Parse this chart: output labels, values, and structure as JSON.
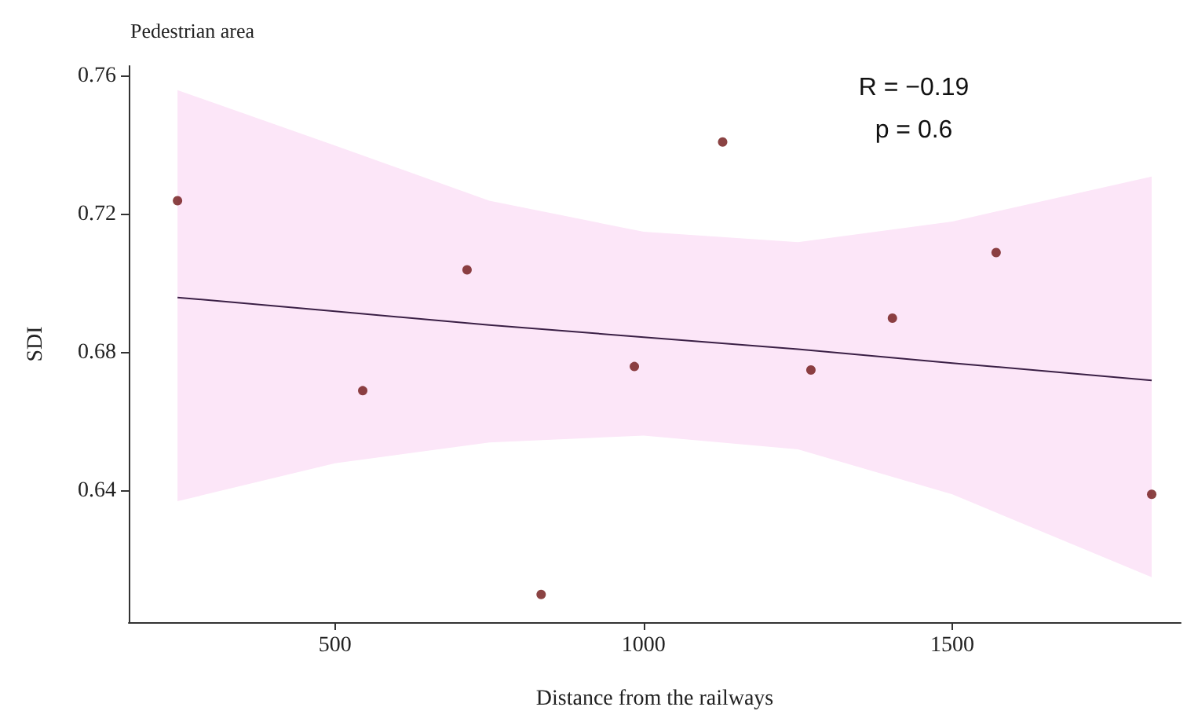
{
  "chart_data": {
    "type": "scatter",
    "title": "Pedestrian area",
    "xlabel": "Distance from the railways",
    "ylabel": "SDI",
    "annotations": [
      "R = −0.19",
      "p = 0.6"
    ],
    "xlim": [
      166,
      1870
    ],
    "ylim": [
      0.602,
      0.763
    ],
    "xticks": [
      500,
      1000,
      1500
    ],
    "yticks": [
      0.64,
      0.68,
      0.72,
      0.76
    ],
    "grid": false,
    "series": [
      {
        "marker": "circle",
        "color": "#6e1414",
        "x": [
          245,
          545,
          714,
          834,
          985,
          1128,
          1271,
          1403,
          1571,
          1823
        ],
        "values": [
          0.724,
          0.669,
          0.704,
          0.61,
          0.676,
          0.741,
          0.675,
          0.69,
          0.709,
          0.639
        ]
      },
      {
        "type": "line",
        "marker": "none",
        "color": "#3a1f45",
        "x": [
          245,
          500,
          750,
          1000,
          1250,
          1500,
          1823
        ],
        "values": [
          0.696,
          0.692,
          0.688,
          0.6845,
          0.681,
          0.677,
          0.672
        ],
        "lower": [
          0.637,
          0.648,
          0.654,
          0.656,
          0.652,
          0.639,
          0.615
        ],
        "upper": [
          0.756,
          0.74,
          0.724,
          0.715,
          0.712,
          0.718,
          0.731
        ]
      }
    ]
  }
}
